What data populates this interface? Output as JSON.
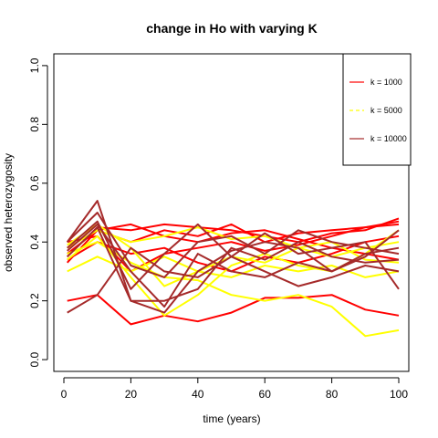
{
  "chart_data": {
    "type": "line",
    "title": "change in Ho with varying K",
    "xlabel": "time (years)",
    "ylabel": "observed heterozygosity",
    "xlim": [
      -3,
      103
    ],
    "ylim": [
      -0.04,
      1.04
    ],
    "xticks": [
      0,
      20,
      40,
      60,
      80,
      100
    ],
    "yticks": [
      0.0,
      0.2,
      0.4,
      0.6,
      0.8,
      1.0
    ],
    "xtick_labels": [
      "0",
      "20",
      "40",
      "60",
      "80",
      "100"
    ],
    "ytick_labels": [
      "0.0",
      "0.2",
      "0.4",
      "0.6",
      "0.8",
      "1.0"
    ],
    "x": [
      1,
      10,
      20,
      30,
      40,
      50,
      60,
      70,
      80,
      90,
      100
    ],
    "legend": {
      "position": "top-right",
      "entries": [
        {
          "label": "k = 1000",
          "color": "#ff0000",
          "dash": "solid"
        },
        {
          "label": "k = 5000",
          "color": "#ffff00",
          "dash": "dashed"
        },
        {
          "label": "k = 10000",
          "color": "#a52a2a",
          "dash": "solid"
        }
      ]
    },
    "series": [
      {
        "group": 0,
        "values": [
          0.2,
          0.22,
          0.12,
          0.15,
          0.13,
          0.16,
          0.21,
          0.21,
          0.22,
          0.17,
          0.15
        ]
      },
      {
        "group": 0,
        "values": [
          0.35,
          0.45,
          0.44,
          0.46,
          0.45,
          0.44,
          0.42,
          0.4,
          0.43,
          0.44,
          0.48
        ]
      },
      {
        "group": 0,
        "values": [
          0.36,
          0.44,
          0.4,
          0.44,
          0.42,
          0.46,
          0.4,
          0.43,
          0.44,
          0.45,
          0.47
        ]
      },
      {
        "group": 0,
        "values": [
          0.4,
          0.42,
          0.3,
          0.36,
          0.38,
          0.4,
          0.37,
          0.39,
          0.42,
          0.45,
          0.46
        ]
      },
      {
        "group": 0,
        "values": [
          0.34,
          0.4,
          0.36,
          0.38,
          0.33,
          0.3,
          0.35,
          0.33,
          0.36,
          0.4,
          0.42
        ]
      },
      {
        "group": 0,
        "values": [
          0.33,
          0.44,
          0.46,
          0.42,
          0.4,
          0.43,
          0.44,
          0.41,
          0.38,
          0.36,
          0.34
        ]
      },
      {
        "group": 1,
        "values": [
          0.36,
          0.4,
          0.33,
          0.28,
          0.27,
          0.22,
          0.2,
          0.22,
          0.18,
          0.08,
          0.1
        ]
      },
      {
        "group": 1,
        "values": [
          0.38,
          0.44,
          0.4,
          0.42,
          0.45,
          0.41,
          0.42,
          0.38,
          0.35,
          0.38,
          0.4
        ]
      },
      {
        "group": 1,
        "values": [
          0.3,
          0.35,
          0.3,
          0.35,
          0.3,
          0.28,
          0.32,
          0.3,
          0.32,
          0.28,
          0.3
        ]
      },
      {
        "group": 1,
        "values": [
          0.39,
          0.46,
          0.38,
          0.25,
          0.3,
          0.35,
          0.33,
          0.38,
          0.4,
          0.34,
          0.33
        ]
      },
      {
        "group": 1,
        "values": [
          0.34,
          0.42,
          0.28,
          0.15,
          0.22,
          0.32,
          0.36,
          0.32,
          0.3,
          0.36,
          0.44
        ]
      },
      {
        "group": 2,
        "values": [
          0.16,
          0.22,
          0.38,
          0.3,
          0.28,
          0.35,
          0.3,
          0.25,
          0.28,
          0.32,
          0.3
        ]
      },
      {
        "group": 2,
        "values": [
          0.4,
          0.54,
          0.2,
          0.16,
          0.3,
          0.37,
          0.4,
          0.38,
          0.3,
          0.35,
          0.44
        ]
      },
      {
        "group": 2,
        "values": [
          0.4,
          0.5,
          0.32,
          0.28,
          0.4,
          0.42,
          0.36,
          0.44,
          0.4,
          0.38,
          0.36
        ]
      },
      {
        "group": 2,
        "values": [
          0.35,
          0.45,
          0.2,
          0.2,
          0.24,
          0.38,
          0.34,
          0.4,
          0.35,
          0.33,
          0.34
        ]
      },
      {
        "group": 2,
        "values": [
          0.38,
          0.47,
          0.24,
          0.36,
          0.46,
          0.35,
          0.43,
          0.36,
          0.38,
          0.4,
          0.24
        ]
      },
      {
        "group": 2,
        "values": [
          0.37,
          0.46,
          0.3,
          0.18,
          0.36,
          0.3,
          0.28,
          0.33,
          0.3,
          0.36,
          0.38
        ]
      }
    ]
  }
}
